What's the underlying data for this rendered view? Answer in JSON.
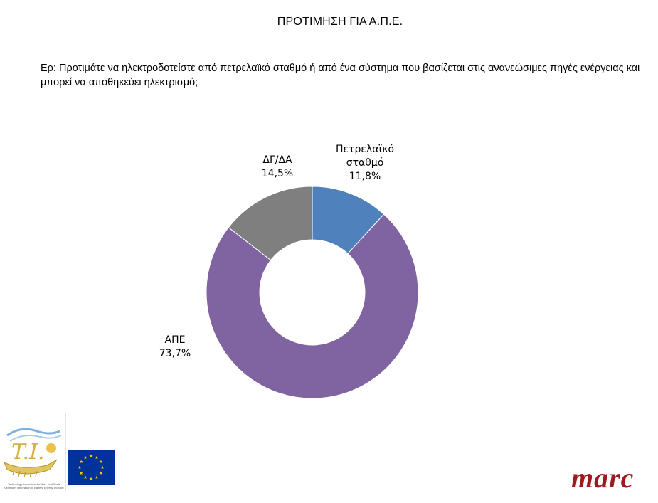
{
  "page": {
    "title": "ΠΡΟΤΙΜΗΣΗ ΓΙΑ Α.Π.Ε.",
    "question": "Ερ: Προτιμάτε να ηλεκτροδοτείστε από πετρελαϊκό σταθμό ή από ένα σύστημα που βασίζεται στις ανανεώσιμες πηγές ενέργειας και μπορεί να αποθηκεύει ηλεκτρισμό;"
  },
  "chart_data": {
    "type": "pie",
    "variant": "donut",
    "title": "",
    "slices": [
      {
        "label_lines": [
          "Πετρελαϊκό",
          "σταθμό"
        ],
        "value": 11.8,
        "value_label": "11,8%",
        "color": "#4f81bd"
      },
      {
        "label_lines": [
          "ΑΠΕ"
        ],
        "value": 73.7,
        "value_label": "73,7%",
        "color": "#8064a2"
      },
      {
        "label_lines": [
          "ΔΓ/ΔΑ"
        ],
        "value": 14.5,
        "value_label": "14,5%",
        "color": "#7f7f7f"
      }
    ],
    "start": "top",
    "direction": "clockwise",
    "legend": "none"
  },
  "footer": {
    "left_logo_icon": "project-ship-logo-icon",
    "left_logo_caption": "Technology Innovation for the Local Scale Optimum Integration of Battery Energy Storage",
    "eu_flag_icon": "eu-flag-icon",
    "eu_flag_color": "#003399",
    "brand": "marc",
    "brand_color": "#9b1b1f"
  }
}
